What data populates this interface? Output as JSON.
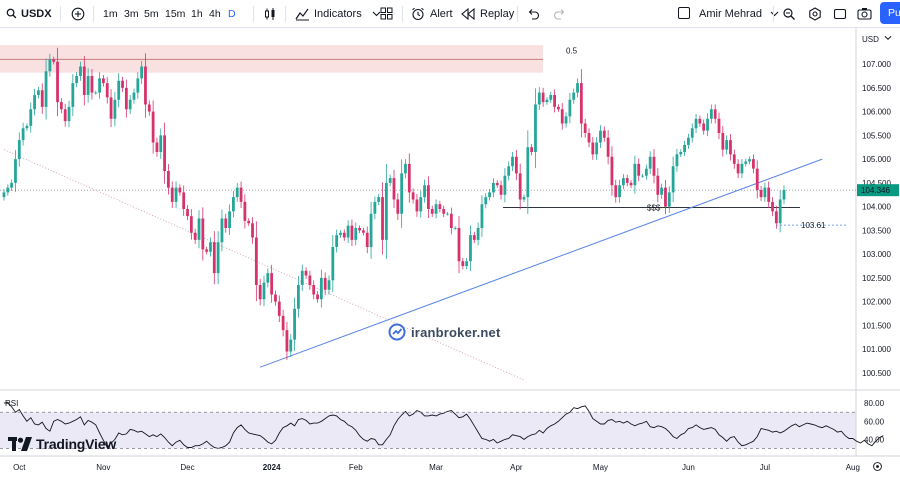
{
  "toolbar": {
    "symbol": "USDX",
    "intervals": [
      "1m",
      "3m",
      "5m",
      "15m",
      "1h",
      "4h",
      "D"
    ],
    "active_interval": "D",
    "indicators_label": "Indicators",
    "alert_label": "Alert",
    "replay_label": "Replay",
    "user_name": "Amir Mehrad",
    "publish_label": "Pu"
  },
  "colors": {
    "up": "#089981",
    "down": "#f23645",
    "up_candle": "#26a69a",
    "down_candle": "#d6336c",
    "trendline": "#5b86e5",
    "zone_fill": "#f8dede",
    "zone_border": "#c97c7c",
    "rsi_band": "#ece9f7",
    "accent": "#2962ff"
  },
  "price_axis": {
    "currency": "USD",
    "ticks": [
      "107.000",
      "106.500",
      "106.000",
      "105.500",
      "105.000",
      "104.500",
      "104.000",
      "103.500",
      "103.000",
      "102.500",
      "102.000",
      "101.500",
      "101.000",
      "100.500"
    ],
    "current_price_label": "104.346",
    "level_label": "103.61"
  },
  "rsi_axis": {
    "ticks": [
      "80.00",
      "60.00",
      "40.00"
    ],
    "label": "RSI"
  },
  "time_axis": {
    "labels": [
      "Oct",
      "Nov",
      "Dec",
      "2024",
      "Feb",
      "Mar",
      "Apr",
      "May",
      "Jun",
      "Jul",
      "Aug"
    ]
  },
  "annotations": {
    "fib_label": "0.5",
    "liquidity_label": "$$$"
  },
  "branding": {
    "logo_text": "TradingView",
    "watermark_text": "iranbroker.net"
  },
  "chart_data": {
    "type": "candlestick",
    "symbol": "USDX",
    "timeframe": "D",
    "ylim": [
      100.35,
      107.55
    ],
    "last_price": 104.346,
    "marked_level": 103.61,
    "supply_zone": [
      106.82,
      107.4
    ],
    "fib_level_0_5": 107.1,
    "liquidity_level": 103.98,
    "trendline_points": [
      {
        "date": "2023-12-28",
        "value": 100.62
      },
      {
        "date": "2024-07-22",
        "value": 105.0
      }
    ],
    "old_support_line": [
      {
        "date": "2023-09-26",
        "value": 105.2
      },
      {
        "date": "2024-04-03",
        "value": 100.35
      }
    ],
    "closes": [
      104.3,
      104.4,
      104.5,
      105,
      105.4,
      105.65,
      105.7,
      106.05,
      106.35,
      106.45,
      106.1,
      106.85,
      107.1,
      107.05,
      106.2,
      106.05,
      105.8,
      106.1,
      106.6,
      106.75,
      106.95,
      106.35,
      106.75,
      106.4,
      106.4,
      106.7,
      106.6,
      106.3,
      105.85,
      106.25,
      106.65,
      106.5,
      106.05,
      106.25,
      106.4,
      106.7,
      106.95,
      106.15,
      106,
      105.35,
      105.15,
      105.5,
      104.75,
      104.4,
      104.1,
      104.4,
      104.3,
      103.95,
      103.8,
      103.45,
      103.3,
      103.75,
      103.1,
      103.05,
      103.25,
      102.6,
      103.25,
      103.75,
      103.55,
      103.9,
      104.2,
      104.4,
      104.1,
      103.7,
      103.65,
      103.35,
      102.35,
      102.05,
      102.4,
      102.6,
      102.15,
      102,
      101.7,
      101.4,
      100.95,
      101.2,
      101.85,
      102.35,
      102.65,
      102.55,
      102.35,
      102.15,
      102.05,
      102.5,
      102.25,
      102.45,
      103.15,
      103.4,
      103.45,
      103.35,
      103.6,
      103.3,
      103.55,
      103.5,
      103.45,
      103.15,
      103.85,
      104.1,
      104.2,
      103.3,
      104.5,
      104.6,
      104.15,
      103.85,
      104.7,
      104.9,
      104.3,
      104.15,
      103.9,
      104.2,
      104.45,
      103.95,
      103.85,
      104.05,
      103.95,
      103.85,
      103.85,
      103.55,
      103.55,
      102.85,
      102.75,
      102.85,
      103.4,
      103.3,
      103.55,
      104.05,
      104.2,
      104.3,
      104.5,
      104.45,
      104.25,
      104.65,
      104.85,
      105.05,
      104.7,
      104.15,
      104.2,
      105.25,
      105.15,
      106.15,
      106.4,
      106.2,
      106.25,
      106.35,
      106.1,
      106.05,
      105.75,
      105.9,
      106.25,
      106.4,
      106.6,
      105.75,
      105.55,
      105.35,
      105.1,
      105.35,
      105.6,
      105.45,
      105.05,
      104.45,
      104.2,
      104.45,
      104.6,
      104.5,
      104.45,
      104.9,
      104.65,
      104.65,
      104.8,
      105.05,
      104.65,
      104.25,
      104.4,
      104,
      104.3,
      104.85,
      105.1,
      105.15,
      105.3,
      105.45,
      105.65,
      105.85,
      105.75,
      105.6,
      105.85,
      106.05,
      105.85,
      105.55,
      105.2,
      105.4,
      105.1,
      104.9,
      104.7,
      104.9,
      104.95,
      105,
      104.8,
      104.35,
      104.2,
      104.4,
      104.1,
      103.9,
      103.65,
      104.15,
      104.35
    ]
  },
  "rsi_data": {
    "overbought": 70,
    "oversold": 30,
    "ylim": [
      26,
      88
    ],
    "values": [
      80,
      81,
      76,
      70,
      73,
      66,
      60,
      64,
      57,
      56,
      59,
      52,
      49,
      60,
      62,
      60,
      57,
      58,
      60,
      62,
      65,
      56,
      61,
      59,
      56,
      47,
      39,
      31,
      36,
      40,
      47,
      45,
      46,
      51,
      50,
      48,
      49,
      46,
      43,
      45,
      43,
      46,
      42,
      37,
      33,
      37,
      39,
      34,
      31,
      31,
      33,
      33,
      35,
      38,
      34,
      31,
      30,
      31,
      33,
      37,
      47,
      53,
      56,
      51,
      47,
      46,
      45,
      44,
      41,
      37,
      35,
      39,
      47,
      53,
      55,
      58,
      55,
      62,
      63,
      61,
      57,
      58,
      58,
      60,
      63,
      66,
      67,
      66,
      62,
      60,
      56,
      54,
      50,
      44,
      40,
      38,
      41,
      40,
      34,
      34,
      40,
      45,
      55,
      62,
      67,
      71,
      66,
      68,
      72,
      70,
      66,
      66,
      67,
      66,
      68,
      69,
      71,
      72,
      68,
      64,
      65,
      68,
      62,
      55,
      48,
      41,
      40,
      38,
      40,
      36,
      38,
      40,
      41,
      45,
      44,
      43,
      40,
      43,
      45,
      46,
      50,
      47,
      52,
      55,
      57,
      60,
      64,
      68,
      70,
      75,
      74,
      76,
      77,
      71,
      63,
      60,
      57,
      57,
      61,
      62,
      59,
      60,
      58,
      60,
      57,
      55,
      57,
      58,
      60,
      54,
      53,
      55,
      54,
      52,
      48,
      43,
      41,
      45,
      47,
      52,
      53,
      56,
      53,
      51,
      52,
      53,
      51,
      45,
      42,
      38,
      42,
      43,
      37,
      33,
      34,
      36,
      38,
      43,
      52,
      51,
      50,
      48,
      49,
      47,
      49,
      52,
      55,
      57,
      54,
      56,
      58,
      57,
      56,
      54,
      53,
      55,
      53,
      51,
      48,
      49,
      44,
      41,
      41,
      38,
      36,
      39,
      35,
      33,
      38,
      42,
      44
    ]
  }
}
